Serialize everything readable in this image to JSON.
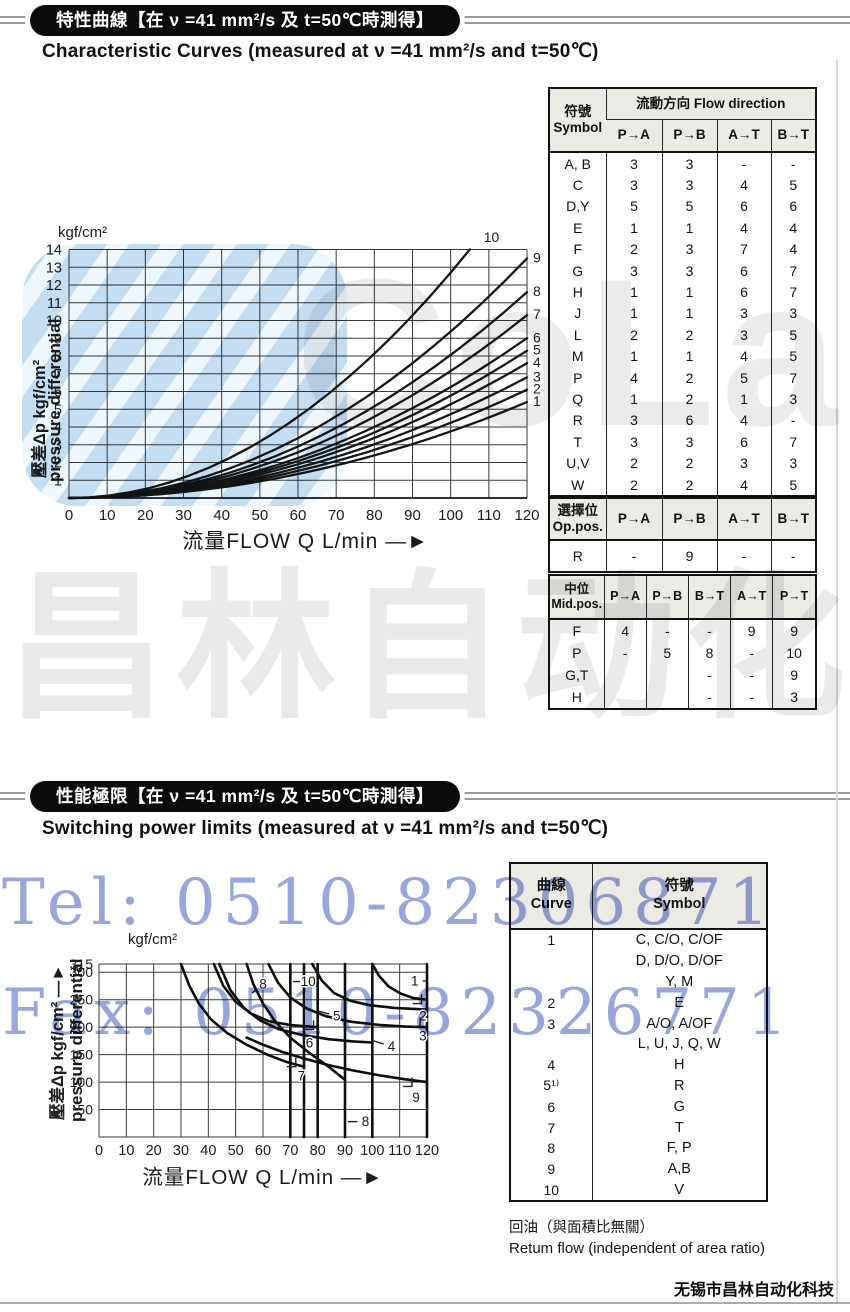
{
  "page": {
    "footer": "无锡市昌林自动化科技"
  },
  "watermarks": {
    "tel": "Tel: 0510-82306871",
    "fax": "Fax: 0510-82326771",
    "brand": "CoLair",
    "brand_cn": "昌林自动化"
  },
  "section1": {
    "pill": "特性曲線【在 ν =41 mm²/s 及 t=50℃時測得】",
    "heading": "Characteristic Curves  (measured at ν =41 mm²/s and t=50℃)",
    "flow_table": {
      "corner": "符號\nSymbol",
      "group": "流動方向  Flow direction",
      "cols": [
        "P→A",
        "P→B",
        "A→T",
        "B→T"
      ],
      "rows": [
        [
          "A, B",
          "3",
          "3",
          "-",
          "-"
        ],
        [
          "C",
          "3",
          "3",
          "4",
          "5"
        ],
        [
          "D,Y",
          "5",
          "5",
          "6",
          "6"
        ],
        [
          "E",
          "1",
          "1",
          "4",
          "4"
        ],
        [
          "F",
          "2",
          "3",
          "7",
          "4"
        ],
        [
          "G",
          "3",
          "3",
          "6",
          "7"
        ],
        [
          "H",
          "1",
          "1",
          "6",
          "7"
        ],
        [
          "J",
          "1",
          "1",
          "3",
          "3"
        ],
        [
          "L",
          "2",
          "2",
          "3",
          "5"
        ],
        [
          "M",
          "1",
          "1",
          "4",
          "5"
        ],
        [
          "P",
          "4",
          "2",
          "5",
          "7"
        ],
        [
          "Q",
          "1",
          "2",
          "1",
          "3"
        ],
        [
          "R",
          "3",
          "6",
          "4",
          "-"
        ],
        [
          "T",
          "3",
          "3",
          "6",
          "7"
        ],
        [
          "U,V",
          "2",
          "2",
          "3",
          "3"
        ],
        [
          "W",
          "2",
          "2",
          "4",
          "5"
        ]
      ]
    },
    "op_table": {
      "corner": "選擇位\nOp.pos.",
      "cols": [
        "P→A",
        "P→B",
        "A→T",
        "B→T"
      ],
      "rows": [
        [
          "R",
          "-",
          "9",
          "-",
          "-"
        ]
      ]
    },
    "mid_table": {
      "corner": "中位\nMid.pos.",
      "cols": [
        "P→A",
        "P→B",
        "B→T",
        "A→T",
        "P→T"
      ],
      "rows": [
        [
          "F",
          "4",
          "-",
          "-",
          "9",
          "9"
        ],
        [
          "P",
          "-",
          "5",
          "8",
          "-",
          "10"
        ],
        [
          "G,T",
          "",
          "",
          "-",
          "-",
          "9"
        ],
        [
          "H",
          "",
          "",
          "-",
          "-",
          "3"
        ]
      ]
    }
  },
  "section2": {
    "pill": "性能極限【在 ν =41 mm²/s 及 t=50℃時測得】",
    "heading": "Switching power limits  (measured at ν =41 mm²/s and t=50℃)",
    "curve_table": {
      "col1": "曲線\nCurve",
      "col2": "符號\nSymbol",
      "rows": [
        [
          "1",
          "C, C/O, C/OF"
        ],
        [
          "",
          "D, D/O, D/OF"
        ],
        [
          "",
          "Y, M"
        ],
        [
          "2",
          "E"
        ],
        [
          "3",
          "A/O, A/OF"
        ],
        [
          "",
          "L, U, J, Q, W"
        ],
        [
          "4",
          "H"
        ],
        [
          "5¹⁾",
          "R"
        ],
        [
          "6",
          "G"
        ],
        [
          "7",
          "T"
        ],
        [
          "8",
          "F, P"
        ],
        [
          "9",
          "A,B"
        ],
        [
          "10",
          "V"
        ]
      ]
    },
    "note_zh": "回油（與面積比無關）",
    "note_en": "Retum flow (independent of area ratio)"
  },
  "chart_data": [
    {
      "type": "line",
      "title": "Characteristic Curves",
      "xlabel": "流量FLOW Q L/min",
      "xlabel_arrow": "—►",
      "y_unit": "kgf/cm²",
      "ylabel_zh": "壓差Δp kgf/cm²",
      "ylabel_en": "pressure differential",
      "xlim": [
        0,
        120
      ],
      "ylim": [
        0,
        14
      ],
      "xticks": [
        0,
        10,
        20,
        30,
        40,
        50,
        60,
        70,
        80,
        90,
        100,
        110,
        120
      ],
      "yticks": [
        1,
        2,
        3,
        4,
        5,
        6,
        7,
        8,
        9,
        10,
        11,
        12,
        13,
        14
      ],
      "grid": true,
      "curve_model": "dp = dp_end × (Q/Q_end)², quadratic from origin (0,0)",
      "curves": [
        {
          "label": "1",
          "q_end": 120,
          "dp_end": 5.4
        },
        {
          "label": "2",
          "q_end": 120,
          "dp_end": 6.1
        },
        {
          "label": "3",
          "q_end": 120,
          "dp_end": 6.8
        },
        {
          "label": "4",
          "q_end": 120,
          "dp_end": 7.6
        },
        {
          "label": "5",
          "q_end": 120,
          "dp_end": 8.3
        },
        {
          "label": "6",
          "q_end": 120,
          "dp_end": 9.0
        },
        {
          "label": "7",
          "q_end": 120,
          "dp_end": 10.3
        },
        {
          "label": "8",
          "q_end": 120,
          "dp_end": 11.6
        },
        {
          "label": "9",
          "q_end": 120,
          "dp_end": 13.5
        },
        {
          "label": "10",
          "q_end": 105,
          "dp_end": 14
        }
      ]
    },
    {
      "type": "line",
      "title": "Switching power limits",
      "xlabel": "流量FLOW Q L/min",
      "xlabel_arrow": "—►",
      "y_unit": "kgf/cm²",
      "ylabel_zh": "壓差Δp kgf/cm²",
      "ylabel_arrow": "—►",
      "ylabel_en": "pressure differential",
      "xlim": [
        0,
        120
      ],
      "ylim": [
        0,
        315
      ],
      "xticks": [
        0,
        10,
        20,
        30,
        40,
        50,
        60,
        70,
        80,
        90,
        100,
        110,
        120
      ],
      "yticks": [
        50,
        100,
        150,
        200,
        250,
        300,
        315
      ],
      "grid": true,
      "vertical_limit_lines": [
        70,
        75,
        80,
        90,
        100,
        120
      ],
      "curves": [
        {
          "label": "7",
          "points": [
            [
              30,
              315
            ],
            [
              33,
              276
            ],
            [
              36.5,
              243
            ],
            [
              41,
              214
            ],
            [
              47,
              189
            ],
            [
              54,
              168
            ],
            [
              62,
              149
            ],
            [
              69,
              136
            ],
            [
              75,
              128
            ]
          ]
        },
        {
          "label": "6",
          "points": [
            [
              42,
              315
            ],
            [
              45.5,
              275
            ],
            [
              50,
              246
            ],
            [
              55.5,
              225
            ],
            [
              62,
              211
            ],
            [
              70,
              204
            ],
            [
              80,
              200
            ]
          ]
        },
        {
          "label": "4",
          "points": [
            [
              44,
              315
            ],
            [
              48,
              268
            ],
            [
              53,
              235
            ],
            [
              59,
              212
            ],
            [
              66,
              196
            ],
            [
              74,
              186
            ],
            [
              84,
              178
            ],
            [
              93,
              174
            ],
            [
              100,
              172
            ]
          ]
        },
        {
          "label": "8",
          "points": [
            [
              54,
              315
            ],
            [
              56.5,
              278
            ],
            [
              60,
              243
            ],
            [
              64.5,
              210
            ],
            [
              70,
              181
            ],
            [
              77,
              153
            ],
            [
              84,
              128
            ],
            [
              90,
              104
            ]
          ]
        },
        {
          "label": "5",
          "points": [
            [
              62,
              315
            ],
            [
              65.5,
              281
            ],
            [
              70,
              254
            ],
            [
              76,
              234
            ],
            [
              83,
              220
            ],
            [
              92,
              210
            ],
            [
              103,
              204
            ],
            [
              112,
              201
            ],
            [
              120,
              200
            ]
          ]
        },
        {
          "label": "2",
          "points": [
            [
              78,
              315
            ],
            [
              81.5,
              285
            ],
            [
              86,
              262
            ],
            [
              92,
              248
            ],
            [
              99,
              240
            ],
            [
              108,
              235
            ],
            [
              120,
              232
            ]
          ]
        },
        {
          "label": "1",
          "points": [
            [
              100,
              315
            ],
            [
              102.5,
              293
            ],
            [
              106,
              274
            ],
            [
              110.5,
              261
            ],
            [
              115,
              253
            ],
            [
              120,
              250
            ]
          ]
        },
        {
          "label": "9",
          "points": [
            [
              54,
              181
            ],
            [
              60,
              168
            ],
            [
              67,
              155
            ],
            [
              75,
              143
            ],
            [
              84,
              131
            ],
            [
              93,
              121
            ],
            [
              103,
              112
            ],
            [
              112,
              105
            ],
            [
              120,
              100
            ]
          ]
        }
      ],
      "labels": [
        {
          "text": "8",
          "x": 60,
          "y": 279,
          "lead_to": [
            56,
            262
          ]
        },
        {
          "text": "10",
          "x": 76.5,
          "y": 283,
          "lead_to": [
            71,
            283
          ]
        },
        {
          "text": "5",
          "x": 87,
          "y": 220,
          "lead_to": [
            80.5,
            229
          ]
        },
        {
          "text": "6",
          "x": 77,
          "y": 171,
          "bracket": [
            78.5,
            196
          ]
        },
        {
          "text": "7",
          "x": 74,
          "y": 111,
          "bracket": [
            72,
            128
          ]
        },
        {
          "text": "4",
          "x": 107,
          "y": 165,
          "lead_to": [
            100.5,
            175
          ]
        },
        {
          "text": "1",
          "x": 115.5,
          "y": 284,
          "lead_to": [
            119.5,
            284
          ]
        },
        {
          "text": "2",
          "x": 118.5,
          "y": 220,
          "bracket": [
            118,
            243
          ]
        },
        {
          "text": "3",
          "x": 118.5,
          "y": 184,
          "bracket": [
            117.5,
            201
          ]
        },
        {
          "text": "9",
          "x": 116,
          "y": 72,
          "bracket": [
            114.5,
            92
          ]
        },
        {
          "text": "8",
          "x": 97.5,
          "y": 28,
          "lead_to": [
            91,
            28
          ]
        }
      ]
    }
  ]
}
